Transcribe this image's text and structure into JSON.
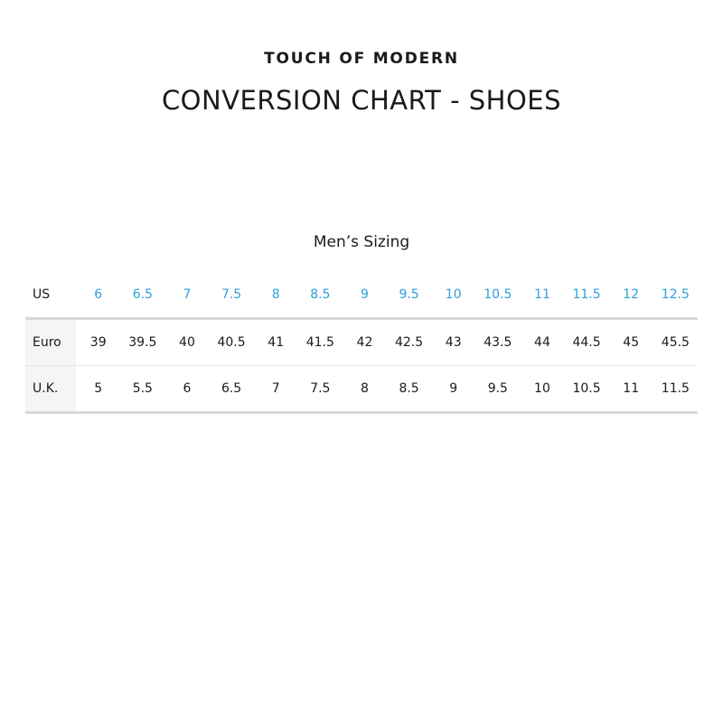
{
  "brand": "TOUCH OF MODERN",
  "title": "CONVERSION CHART - SHOES",
  "subtitle": "Men’s Sizing",
  "accent_color": "#2d9fdc",
  "rows": [
    {
      "label": "US",
      "values": [
        "6",
        "6.5",
        "7",
        "7.5",
        "8",
        "8.5",
        "9",
        "9.5",
        "10",
        "10.5",
        "11",
        "11.5",
        "12",
        "12.5"
      ]
    },
    {
      "label": "Euro",
      "values": [
        "39",
        "39.5",
        "40",
        "40.5",
        "41",
        "41.5",
        "42",
        "42.5",
        "43",
        "43.5",
        "44",
        "44.5",
        "45",
        "45.5"
      ]
    },
    {
      "label": "U.K.",
      "values": [
        "5",
        "5.5",
        "6",
        "6.5",
        "7",
        "7.5",
        "8",
        "8.5",
        "9",
        "9.5",
        "10",
        "10.5",
        "11",
        "11.5"
      ]
    }
  ]
}
